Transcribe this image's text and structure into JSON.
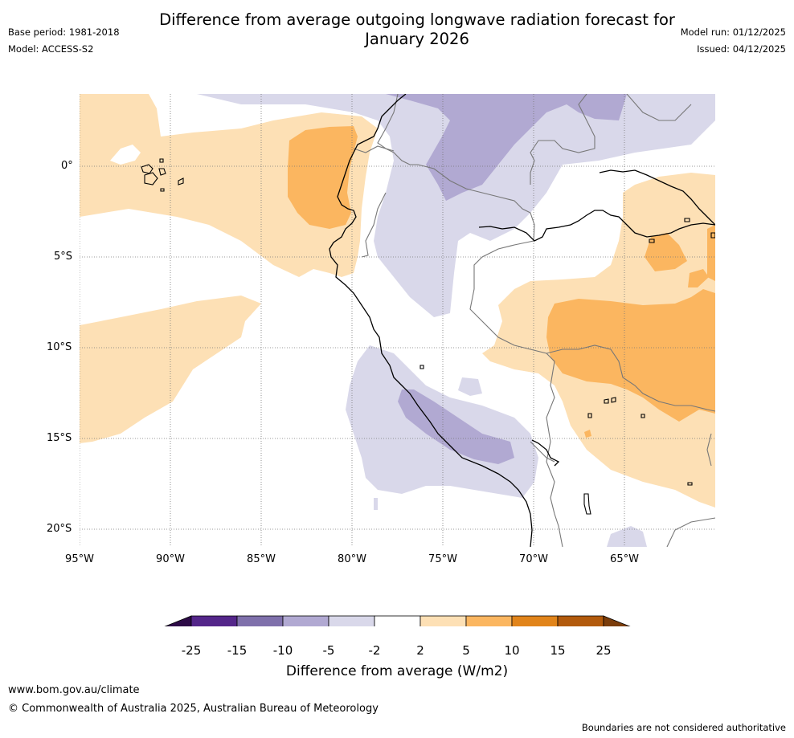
{
  "header": {
    "title_line1": "Difference from average outgoing longwave radiation forecast for",
    "title_line2": "January 2026",
    "base_period": "Base period: 1981-2018",
    "model": "Model: ACCESS-S2",
    "model_run": "Model run: 01/12/2025",
    "issued": "Issued: 04/12/2025"
  },
  "map": {
    "lat_labels": [
      "0°",
      "5°S",
      "10°S",
      "15°S",
      "20°S"
    ],
    "lon_labels": [
      "95°W",
      "90°W",
      "85°W",
      "80°W",
      "75°W",
      "70°W",
      "65°W"
    ]
  },
  "colorbar": {
    "ticks": [
      "-25",
      "-15",
      "-10",
      "-5",
      "-2",
      "2",
      "5",
      "10",
      "15",
      "25"
    ],
    "colors": [
      "#2d0a47",
      "#54268a",
      "#7f70ab",
      "#b1a9d2",
      "#d9d8ea",
      "#ffffff",
      "#fde0b5",
      "#fbb660",
      "#e1841a",
      "#b25a0c",
      "#7b3d0b"
    ],
    "title": "Difference from average (W/m2)"
  },
  "footer": {
    "url": "www.bom.gov.au/climate",
    "copyright": "© Commonwealth of Australia 2025, Australian Bureau of Meteorology",
    "note": "Boundaries are not considered authoritative"
  }
}
